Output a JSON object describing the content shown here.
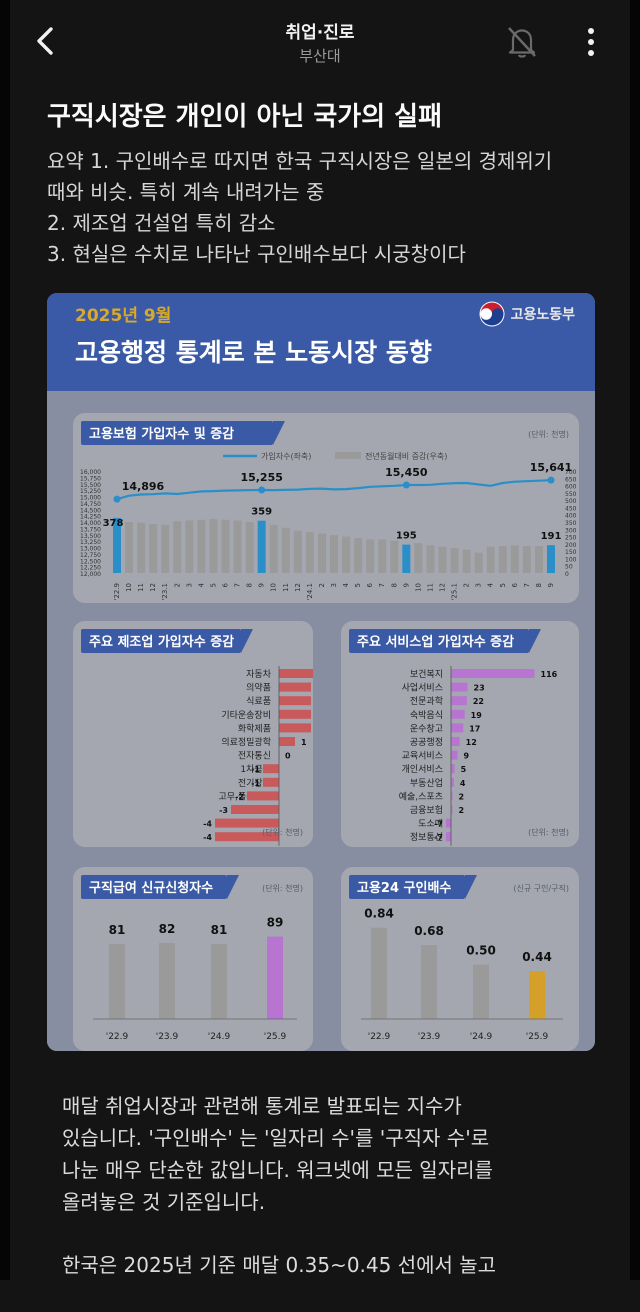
{
  "header": {
    "title": "취업·진로",
    "subtitle": "부산대"
  },
  "post": {
    "title": "구직시장은 개인이 아닌 국가의 실패",
    "summary_lines": [
      "요약 1. 구인배수로 따지면 한국 구직시장은 일본의 경제위기",
      "때와 비슷. 특히 계속 내려가는 중",
      "2. 제조업 건설업 특히 감소",
      "3. 현실은 수치로 나타난 구인배수보다 시궁창이다"
    ],
    "body_paragraphs": [
      [
        "매달 취업시장과 관련해 통계로 발표되는 지수가",
        "있습니다. '구인배수' 는 '일자리 수'를 '구직자 수'로",
        "나눈 매우 단순한 값입니다. 워크넷에 모든 일자리를",
        "올려놓은 것 기준입니다."
      ],
      [
        "한국은 2025년 기준 매달 0.35~0.45 선에서 놀고"
      ]
    ]
  },
  "infographic": {
    "year": "2025년 9월",
    "ministry": "고용노동부",
    "title": "고용행정 통계로 본 노동시장 동향"
  },
  "icons": {
    "back": "chevron-left-icon",
    "notification": "bell-off-icon",
    "more": "more-vertical-icon",
    "ministry_logo": "taegeuk-logo-icon"
  },
  "colors": {
    "accent_blue": "#2a8fc9",
    "header_blue": "#3a5aa8",
    "year_gold": "#d8a92a",
    "bar_gray": "#9a9a9a",
    "bar_red": "#c85a5c",
    "bar_purple": "#b774d0",
    "bar_gold": "#d4a02a",
    "panel_title_bg": "#3b5aa6"
  },
  "chart_data": [
    {
      "type": "line+bar",
      "title": "고용보험 가입자수 및 증감",
      "unit": "(단위: 천명)",
      "series": [
        {
          "name": "가입자수(좌축)",
          "type": "line",
          "values": [
            14896,
            15030,
            15080,
            15090,
            15120,
            15100,
            15150,
            15200,
            15210,
            15230,
            15240,
            15250,
            15255,
            15250,
            15260,
            15270,
            15300,
            15310,
            15280,
            15290,
            15330,
            15380,
            15400,
            15420,
            15450,
            15450,
            15460,
            15500,
            15520,
            15530,
            15470,
            15420,
            15530,
            15580,
            15600,
            15620,
            15641
          ]
        },
        {
          "name": "전년동월대비 증감(우축)",
          "type": "bar",
          "values": [
            378,
            350,
            345,
            335,
            330,
            355,
            360,
            365,
            370,
            365,
            360,
            350,
            359,
            330,
            310,
            290,
            280,
            270,
            260,
            250,
            240,
            230,
            230,
            220,
            195,
            205,
            190,
            180,
            170,
            160,
            140,
            180,
            185,
            190,
            185,
            185,
            191
          ]
        }
      ],
      "x_tick_labels": [
        "'22.9",
        "10",
        "11",
        "12",
        "'23.1",
        "2",
        "3",
        "4",
        "5",
        "6",
        "7",
        "8",
        "9",
        "10",
        "11",
        "12",
        "'24.1",
        "2",
        "3",
        "4",
        "5",
        "6",
        "7",
        "8",
        "9",
        "10",
        "11",
        "12",
        "'25.1",
        "2",
        "3",
        "4",
        "5",
        "6",
        "7",
        "8",
        "9"
      ],
      "y_left_ticks": [
        "16,000",
        "15,750",
        "15,500",
        "15,250",
        "15,000",
        "14,750",
        "14,500",
        "14,250",
        "14,000",
        "13,750",
        "13,500",
        "13,250",
        "13,000",
        "12,750",
        "12,500",
        "12,250",
        "12,000"
      ],
      "y_right_ticks": [
        "700",
        "650",
        "600",
        "550",
        "500",
        "450",
        "400",
        "350",
        "300",
        "250",
        "200",
        "150",
        "100",
        "50",
        "0"
      ],
      "data_labels": {
        "line": [
          "14,896",
          "15,255",
          "15,450",
          "15,641"
        ],
        "bar": [
          "378",
          "359",
          "195",
          "191"
        ]
      }
    },
    {
      "type": "bar",
      "orientation": "horizontal",
      "title": "주요 제조업 가입자수 증감",
      "unit": "(단위: 천명)",
      "categories": [
        "자동차",
        "의약품",
        "식료품",
        "기타운송장비",
        "화학제품",
        "의료정밀광학",
        "전자통신",
        "1차금속",
        "전기장비",
        "고무,플라스틱",
        "기계장비",
        "섬유제품",
        "금속가공"
      ],
      "values": [
        3,
        2,
        2,
        2,
        2,
        1,
        0,
        -1,
        -1,
        -2,
        -3,
        -4,
        -4
      ]
    },
    {
      "type": "bar",
      "orientation": "horizontal",
      "title": "주요 서비스업 가입자수 증감",
      "unit": "(단위: 천명)",
      "categories": [
        "보건복지",
        "사업서비스",
        "전문과학",
        "숙박음식",
        "운수창고",
        "공공행정",
        "교육서비스",
        "개인서비스",
        "부동산업",
        "예술,스포츠",
        "금융보험",
        "도소매",
        "정보통신"
      ],
      "values": [
        116,
        23,
        22,
        19,
        17,
        12,
        9,
        5,
        4,
        2,
        2,
        -7,
        -7
      ]
    },
    {
      "type": "bar",
      "title": "구직급여 신규신청자수",
      "unit": "(단위: 천명)",
      "categories": [
        "'22.9",
        "'23.9",
        "'24.9",
        "'25.9"
      ],
      "values": [
        81,
        82,
        81,
        89
      ]
    },
    {
      "type": "bar",
      "title": "고용24 구인배수",
      "unit": "(신규 구인/구직)",
      "categories": [
        "'22.9",
        "'23.9",
        "'24.9",
        "'25.9"
      ],
      "values": [
        0.84,
        0.68,
        0.5,
        0.44
      ]
    }
  ]
}
